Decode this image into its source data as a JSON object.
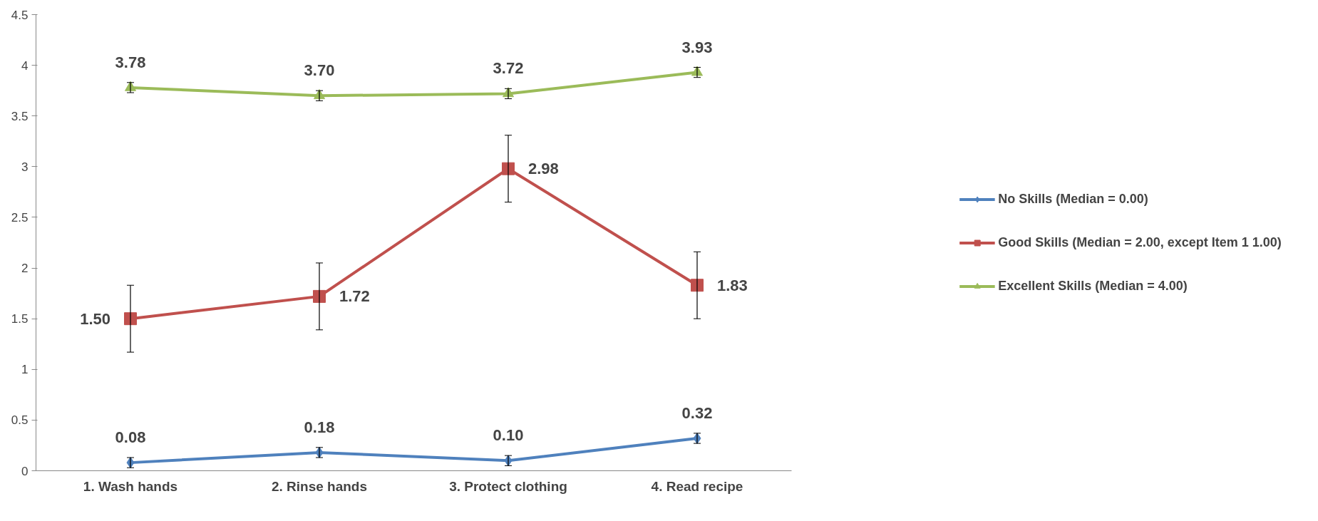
{
  "chart_data": {
    "type": "line",
    "categories": [
      "1. Wash hands",
      "2. Rinse hands",
      "3. Protect clothing",
      "4. Read recipe"
    ],
    "series": [
      {
        "name": "No Skills (Median = 0.00)",
        "color": "#4f81bd",
        "marker": "diamond",
        "values": [
          0.08,
          0.18,
          0.1,
          0.32
        ],
        "value_labels": [
          "0.08",
          "0.18",
          "0.10",
          "0.32"
        ],
        "errors": [
          0.05,
          0.05,
          0.05,
          0.05
        ]
      },
      {
        "name": "Good Skills (Median = 2.00, except Item 1 1.00)",
        "color": "#c0504d",
        "marker": "square",
        "values": [
          1.5,
          1.72,
          2.98,
          1.83
        ],
        "value_labels": [
          "1.50",
          "1.72",
          "2.98",
          "1.83"
        ],
        "errors": [
          0.33,
          0.33,
          0.33,
          0.33
        ]
      },
      {
        "name": "Excellent Skills (Median = 4.00)",
        "color": "#9bbb59",
        "marker": "triangle",
        "values": [
          3.78,
          3.7,
          3.72,
          3.93
        ],
        "value_labels": [
          "3.78",
          "3.70",
          "3.72",
          "3.93"
        ],
        "errors": [
          0.05,
          0.05,
          0.05,
          0.05
        ]
      }
    ],
    "ylim": [
      0,
      4.5
    ],
    "yticks": [
      0,
      {
        "value": 0.5,
        "label": "0.5"
      },
      1,
      {
        "value": 1.5,
        "label": "1.5"
      },
      2,
      {
        "value": 2.5,
        "label": "2.5"
      },
      3,
      {
        "value": 3.5,
        "label": "3.5"
      },
      4,
      {
        "value": 4.5,
        "label": "4.5"
      }
    ],
    "grid": false,
    "legend": "right"
  }
}
